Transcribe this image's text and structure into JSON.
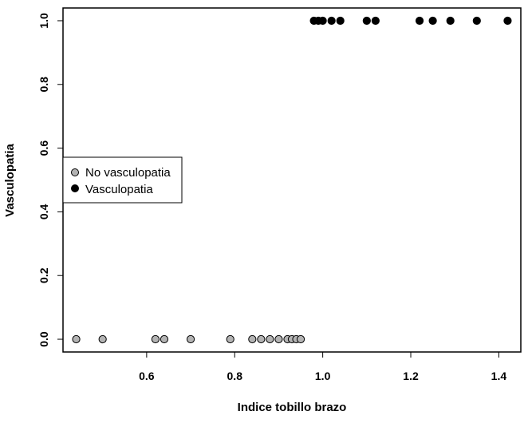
{
  "chart_data": {
    "type": "scatter",
    "title": "",
    "xlabel": "Indice tobillo brazo",
    "ylabel": "Vasculopatia",
    "xlim": [
      0.41,
      1.45
    ],
    "ylim": [
      -0.04,
      1.04
    ],
    "x_ticks": [
      0.6,
      0.8,
      1.0,
      1.2,
      1.4
    ],
    "x_tick_labels": [
      "0.6",
      "0.8",
      "1.0",
      "1.2",
      "1.4"
    ],
    "y_ticks": [
      0.0,
      0.2,
      0.4,
      0.6,
      0.8,
      1.0
    ],
    "y_tick_labels": [
      "0.0",
      "0.2",
      "0.4",
      "0.6",
      "0.8",
      "1.0"
    ],
    "grid": false,
    "legend_position": "left-center",
    "series": [
      {
        "name": "No vasculopatia",
        "color": "#b3b3b3",
        "x": [
          0.44,
          0.5,
          0.62,
          0.64,
          0.7,
          0.79,
          0.84,
          0.86,
          0.88,
          0.9,
          0.92,
          0.93,
          0.94,
          0.95
        ],
        "y": [
          0,
          0,
          0,
          0,
          0,
          0,
          0,
          0,
          0,
          0,
          0,
          0,
          0,
          0
        ]
      },
      {
        "name": "Vasculopatia",
        "color": "#000000",
        "x": [
          0.98,
          0.99,
          1.0,
          1.02,
          1.04,
          1.1,
          1.12,
          1.22,
          1.25,
          1.29,
          1.35,
          1.42
        ],
        "y": [
          1,
          1,
          1,
          1,
          1,
          1,
          1,
          1,
          1,
          1,
          1,
          1
        ]
      }
    ]
  }
}
